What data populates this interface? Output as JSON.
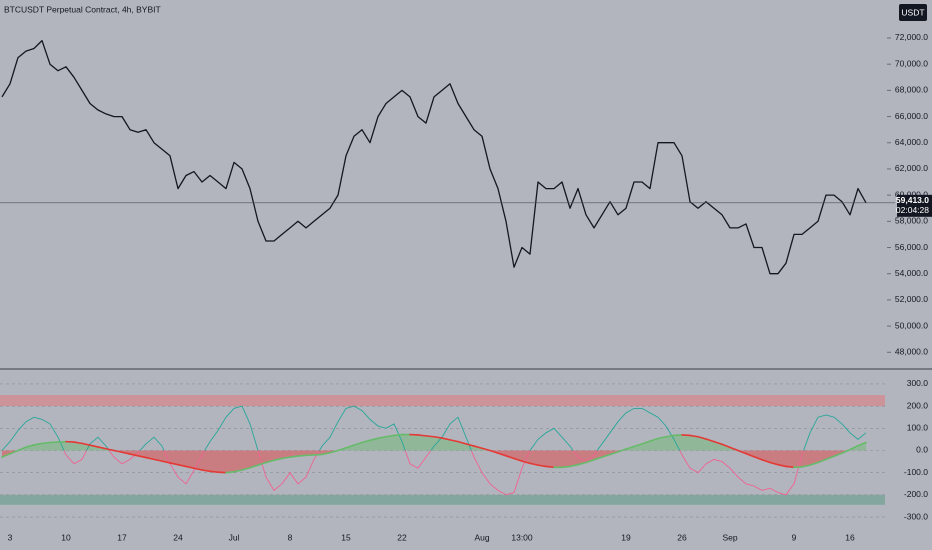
{
  "chart_data": [
    {
      "type": "line",
      "title": "BTCUSDT Perpetual Contract, 4h, BYBIT",
      "currency": "USDT",
      "categories": [
        null,
        "3",
        null,
        null,
        null,
        null,
        null,
        null,
        "10",
        null,
        null,
        null,
        null,
        null,
        null,
        "17",
        null,
        null,
        null,
        null,
        null,
        null,
        "24",
        null,
        null,
        null,
        null,
        null,
        null,
        "Jul",
        null,
        null,
        null,
        null,
        null,
        null,
        "8",
        null,
        null,
        null,
        null,
        null,
        null,
        "15",
        null,
        null,
        null,
        null,
        null,
        null,
        "22",
        null,
        null,
        null,
        null,
        null,
        null,
        null,
        null,
        null,
        "Aug",
        null,
        null,
        null,
        null,
        "13:00",
        null,
        null,
        null,
        null,
        null,
        null,
        null,
        null,
        null,
        null,
        null,
        null,
        "19",
        null,
        null,
        null,
        null,
        null,
        null,
        "26",
        null,
        null,
        null,
        null,
        null,
        "Sep",
        null,
        null,
        null,
        null,
        null,
        null,
        null,
        "9",
        null,
        null,
        null,
        null,
        null,
        null,
        "16",
        null,
        null
      ],
      "values": [
        67500,
        68500,
        70500,
        71000,
        71200,
        71800,
        70000,
        69500,
        69800,
        69000,
        68000,
        67000,
        66500,
        66200,
        66000,
        66000,
        65000,
        64800,
        65000,
        64000,
        63500,
        63000,
        60500,
        61500,
        61800,
        61000,
        61500,
        61000,
        60500,
        62500,
        62000,
        60500,
        58000,
        56500,
        56500,
        57000,
        57500,
        58000,
        57500,
        58000,
        58500,
        59000,
        60000,
        63000,
        64500,
        65000,
        64000,
        66000,
        67000,
        67500,
        68000,
        67500,
        66000,
        65500,
        67500,
        68000,
        68500,
        67000,
        66000,
        65000,
        64500,
        62000,
        60500,
        58000,
        54500,
        56000,
        55500,
        61000,
        60500,
        60500,
        61000,
        59000,
        60500,
        58500,
        57500,
        58500,
        59500,
        58500,
        59000,
        61000,
        61000,
        60500,
        64000,
        64000,
        64000,
        63000,
        59500,
        59000,
        59500,
        59000,
        58500,
        57500,
        57500,
        57800,
        56000,
        56000,
        54000,
        54000,
        54800,
        57000,
        57000,
        57500,
        58000,
        60000,
        60000,
        59500,
        58500,
        60500,
        59413
      ],
      "color": "#131722",
      "last_price_label": "59,413.0",
      "countdown": "02:04:28",
      "ylim": [
        46800,
        74900
      ],
      "yticks": [
        {
          "value": 48000,
          "label": "48,000.0"
        },
        {
          "value": 50000,
          "label": "50,000.0"
        },
        {
          "value": 52000,
          "label": "52,000.0"
        },
        {
          "value": 54000,
          "label": "54,000.0"
        },
        {
          "value": 56000,
          "label": "56,000.0"
        },
        {
          "value": 58000,
          "label": "58,000.0"
        },
        {
          "value": 60000,
          "label": "60,000.0"
        },
        {
          "value": 62000,
          "label": "62,000.0"
        },
        {
          "value": 64000,
          "label": "64,000.0"
        },
        {
          "value": 66000,
          "label": "66,000.0"
        },
        {
          "value": 68000,
          "label": "68,000.0"
        },
        {
          "value": 70000,
          "label": "70,000.0"
        },
        {
          "value": 72000,
          "label": "72,000.0"
        }
      ]
    },
    {
      "type": "line",
      "series": [
        {
          "color": "#26a69a",
          "negative_color": "#f06292",
          "values": [
            0,
            40,
            90,
            130,
            150,
            140,
            120,
            60,
            -20,
            -60,
            -40,
            30,
            60,
            20,
            -30,
            -60,
            -40,
            -10,
            30,
            60,
            20,
            -60,
            -120,
            -150,
            -90,
            -20,
            40,
            90,
            150,
            190,
            200,
            120,
            0,
            -120,
            -180,
            -150,
            -100,
            -150,
            -120,
            -40,
            20,
            60,
            130,
            190,
            200,
            180,
            140,
            110,
            100,
            120,
            40,
            -60,
            -80,
            -30,
            20,
            60,
            120,
            150,
            60,
            -30,
            -100,
            -150,
            -180,
            -200,
            -190,
            -80,
            0,
            50,
            80,
            100,
            60,
            20,
            -30,
            -50,
            -20,
            30,
            80,
            130,
            170,
            190,
            190,
            170,
            150,
            110,
            50,
            -20,
            -80,
            -100,
            -60,
            -40,
            -50,
            -80,
            -120,
            -150,
            -160,
            -180,
            -170,
            -190,
            -200,
            -150,
            -20,
            80,
            150,
            160,
            150,
            120,
            80,
            50,
            80
          ]
        },
        {
          "color": "#e53935",
          "rising_color": "#66bb6a",
          "values": [
            -30,
            -15,
            0,
            15,
            25,
            32,
            36,
            38,
            40,
            38,
            32,
            24,
            16,
            8,
            0,
            -8,
            -16,
            -24,
            -32,
            -40,
            -48,
            -56,
            -64,
            -72,
            -80,
            -88,
            -94,
            -98,
            -100,
            -96,
            -88,
            -78,
            -66,
            -54,
            -44,
            -36,
            -30,
            -25,
            -22,
            -20,
            -18,
            -10,
            0,
            12,
            24,
            36,
            46,
            55,
            62,
            68,
            72,
            72,
            70,
            66,
            62,
            56,
            48,
            40,
            30,
            20,
            10,
            0,
            -12,
            -24,
            -36,
            -48,
            -58,
            -66,
            -72,
            -76,
            -76,
            -72,
            -64,
            -54,
            -42,
            -30,
            -18,
            -6,
            6,
            18,
            30,
            42,
            54,
            62,
            68,
            70,
            68,
            62,
            52,
            40,
            28,
            14,
            0,
            -14,
            -28,
            -42,
            -54,
            -64,
            -72,
            -76,
            -74,
            -66,
            -54,
            -40,
            -26,
            -12,
            4,
            22,
            36
          ]
        }
      ],
      "zones": [
        {
          "from": 200,
          "to": 250,
          "color": "#d4898e"
        },
        {
          "from": -245,
          "to": -200,
          "color": "#73a396"
        }
      ],
      "grid": true,
      "ylim": [
        -336,
        363
      ],
      "yticks": [
        {
          "value": 300,
          "label": "300.0"
        },
        {
          "value": 200,
          "label": "200.0"
        },
        {
          "value": 100,
          "label": "100.0"
        },
        {
          "value": 0,
          "label": "0.0"
        },
        {
          "value": -100,
          "label": "-100.0"
        },
        {
          "value": -200,
          "label": "-200.0"
        },
        {
          "value": -300,
          "label": "-300.0"
        }
      ]
    }
  ]
}
